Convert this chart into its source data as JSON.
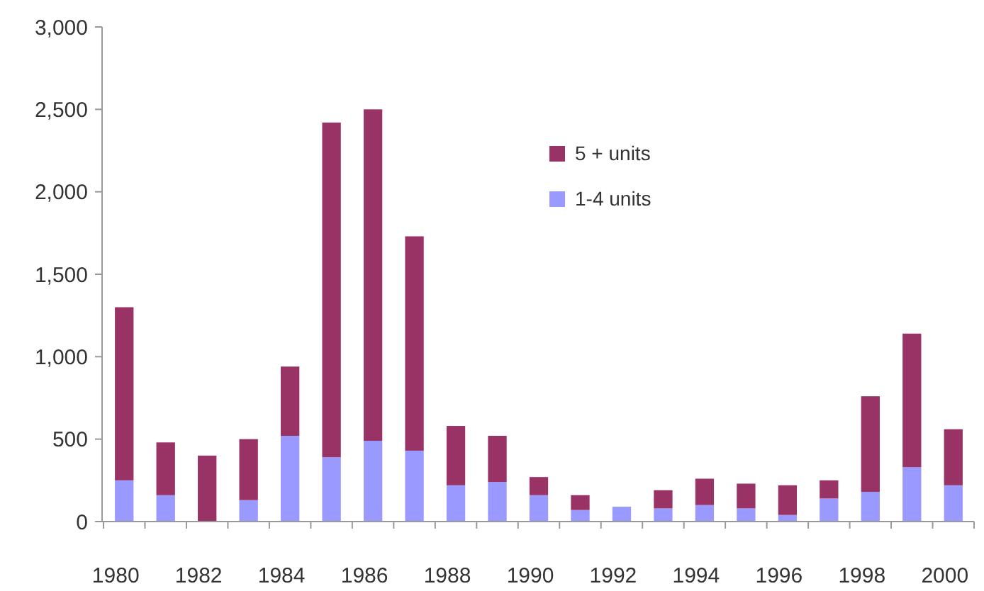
{
  "chart_data": {
    "type": "bar",
    "stacked": true,
    "legend": "top",
    "categories": [
      "1980",
      null,
      "1982",
      null,
      "1984",
      null,
      "1986",
      null,
      "1988",
      null,
      "1990",
      null,
      "1992",
      null,
      "1994",
      null,
      "1996",
      null,
      "1998",
      null,
      "2000"
    ],
    "series": [
      {
        "name": "1-4 units",
        "color": "#9999ff",
        "values": [
          250,
          160,
          0,
          130,
          520,
          390,
          490,
          430,
          220,
          240,
          160,
          70,
          90,
          80,
          100,
          80,
          40,
          140,
          180,
          330,
          220
        ]
      },
      {
        "name": "5 + units",
        "color": "#993366",
        "values": [
          1050,
          320,
          400,
          370,
          420,
          2030,
          2010,
          1300,
          360,
          280,
          110,
          90,
          0,
          110,
          160,
          150,
          180,
          110,
          580,
          810,
          340
        ]
      }
    ],
    "ylim": [
      0,
      3000
    ],
    "yticks": [
      0,
      500,
      {
        "value": 1000,
        "label": "1,000"
      },
      {
        "value": 1500,
        "label": "1,500"
      },
      {
        "value": 2000,
        "label": "2,000"
      },
      {
        "value": 2500,
        "label": "2,500"
      },
      {
        "value": 3000,
        "label": "3,000"
      }
    ]
  }
}
